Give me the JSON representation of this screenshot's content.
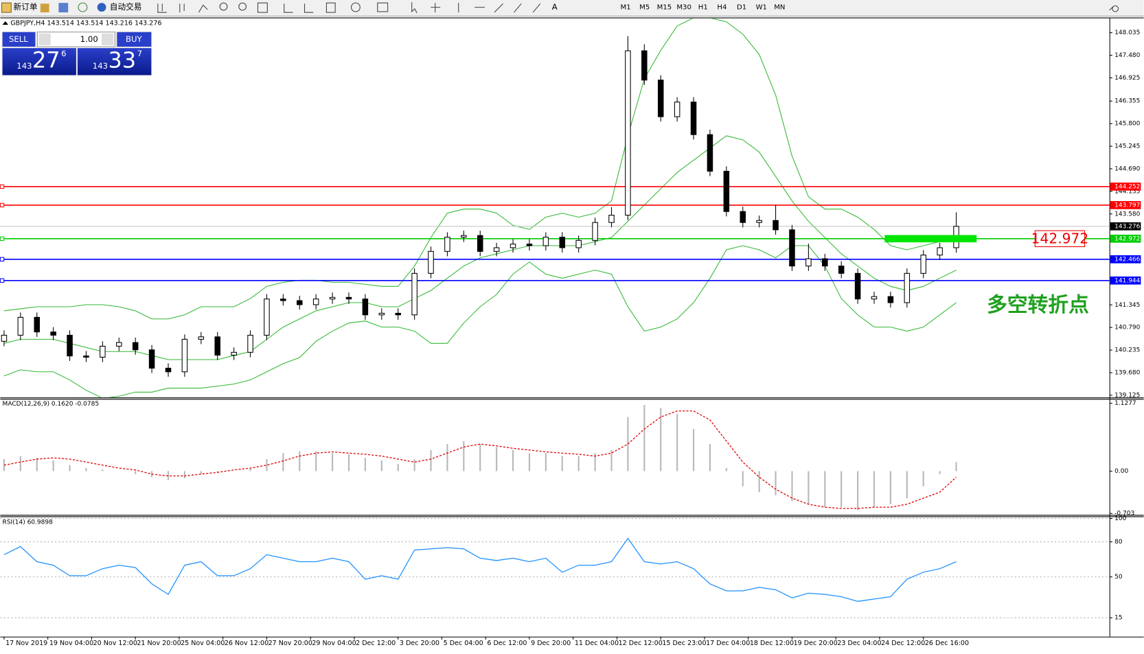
{
  "toolbar": {
    "new_order": "新订单",
    "auto_trading": "自动交易",
    "timeframes": [
      "M1",
      "M5",
      "M15",
      "M30",
      "H1",
      "H4",
      "D1",
      "W1",
      "MN"
    ]
  },
  "trade_panel": {
    "sell_label": "SELL",
    "buy_label": "BUY",
    "lot": "1.00",
    "sell": {
      "big": "143",
      "pips": "27",
      "fraction": "6"
    },
    "buy": {
      "big": "143",
      "pips": "33",
      "fraction": "7"
    }
  },
  "chart_data": {
    "type": "candlestick",
    "title": "GBPJPY,H4  143.514 143.514 143.216 143.276",
    "x": [
      0,
      3,
      6,
      9,
      12,
      15,
      18,
      21,
      24,
      27,
      30,
      33,
      36,
      39,
      42,
      45,
      48,
      51,
      54,
      57,
      60,
      63,
      66,
      69,
      72,
      75,
      78,
      81,
      84,
      87,
      90,
      93,
      96,
      99,
      102,
      105,
      108,
      111,
      114,
      117,
      120,
      123,
      126,
      129,
      132,
      135,
      138,
      141,
      144,
      147,
      150,
      153,
      156,
      159,
      162,
      165,
      168,
      171,
      174
    ],
    "xlim": [
      -0.7,
      202
    ],
    "xticks": [
      {
        "value": 0,
        "label": "17 Nov 2019"
      },
      {
        "value": 8,
        "label": "19 Nov 04:00"
      },
      {
        "value": 16,
        "label": "20 Nov 12:00"
      },
      {
        "value": 24,
        "label": "21 Nov 20:00"
      },
      {
        "value": 32,
        "label": "25 Nov 04:00"
      },
      {
        "value": 40,
        "label": "26 Nov 12:00"
      },
      {
        "value": 48,
        "label": "27 Nov 20:00"
      },
      {
        "value": 56,
        "label": "29 Nov 04:00"
      },
      {
        "value": 64,
        "label": "2 Dec 12:00"
      },
      {
        "value": 72,
        "label": "3 Dec 20:00"
      },
      {
        "value": 80,
        "label": "5 Dec 04:00"
      },
      {
        "value": 88,
        "label": "6 Dec 12:00"
      },
      {
        "value": 96,
        "label": "9 Dec 20:00"
      },
      {
        "value": 104,
        "label": "11 Dec 04:00"
      },
      {
        "value": 112,
        "label": "12 Dec 12:00"
      },
      {
        "value": 120,
        "label": "15 Dec 23:00"
      },
      {
        "value": 128,
        "label": "17 Dec 04:00"
      },
      {
        "value": 136,
        "label": "18 Dec 12:00"
      },
      {
        "value": 144,
        "label": "19 Dec 20:00"
      },
      {
        "value": 152,
        "label": "23 Dec 04:00"
      },
      {
        "value": 160,
        "label": "24 Dec 12:00"
      },
      {
        "value": 168,
        "label": "26 Dec 16:00"
      }
    ],
    "ylim": [
      139.07,
      148.39
    ],
    "yticks": [
      148.035,
      {
        "value": 147.48,
        "label": "147.480"
      },
      146.925,
      146.355,
      {
        "value": 145.8,
        "label": "145.800"
      },
      145.245,
      {
        "value": 144.69,
        "label": "144.690"
      },
      144.135,
      {
        "value": 143.58,
        "label": "143.580"
      },
      141.345,
      {
        "value": 140.79,
        "label": "140.790"
      },
      140.235,
      {
        "value": 139.68,
        "label": "139.680"
      },
      139.125
    ],
    "open": [
      140.45,
      140.6,
      141.04,
      140.68,
      140.6,
      140.09,
      140.06,
      140.33,
      140.42,
      140.24,
      139.79,
      139.7,
      140.5,
      140.56,
      140.11,
      140.18,
      140.6,
      141.49,
      141.45,
      141.35,
      141.49,
      141.53,
      141.49,
      141.1,
      141.14,
      141.1,
      142.12,
      142.66,
      143.01,
      143.05,
      142.66,
      142.75,
      142.84,
      142.8,
      143.01,
      142.75,
      142.93,
      143.37,
      143.55,
      147.59,
      146.87,
      145.97,
      146.33,
      145.53,
      144.63,
      143.64,
      143.37,
      143.42,
      143.19,
      142.3,
      142.48,
      142.3,
      142.12,
      141.49,
      141.55,
      141.4,
      142.12,
      142.57,
      142.75
    ],
    "high": [
      140.72,
      141.16,
      141.16,
      140.8,
      140.72,
      140.21,
      140.45,
      140.54,
      140.54,
      140.36,
      139.91,
      140.62,
      140.68,
      140.68,
      140.3,
      140.72,
      141.61,
      141.61,
      141.57,
      141.61,
      141.65,
      141.65,
      141.61,
      141.26,
      141.26,
      142.24,
      142.78,
      143.13,
      143.17,
      143.17,
      142.87,
      142.96,
      142.96,
      143.13,
      143.13,
      143.05,
      143.49,
      143.75,
      147.95,
      147.75,
      146.99,
      146.45,
      146.45,
      145.65,
      144.75,
      143.76,
      143.54,
      143.8,
      143.31,
      142.85,
      142.6,
      142.42,
      142.24,
      141.67,
      141.67,
      142.24,
      142.69,
      142.87,
      143.62
    ],
    "low": [
      140.33,
      140.48,
      140.56,
      140.48,
      139.97,
      139.94,
      139.94,
      140.21,
      140.12,
      139.67,
      139.58,
      139.58,
      140.38,
      139.99,
      139.99,
      140.06,
      140.48,
      141.33,
      141.23,
      141.23,
      141.37,
      141.37,
      140.98,
      140.98,
      140.98,
      140.98,
      142.0,
      142.54,
      142.89,
      142.54,
      142.54,
      142.63,
      142.68,
      142.68,
      142.63,
      142.63,
      142.81,
      143.25,
      143.43,
      146.75,
      145.85,
      145.85,
      145.41,
      144.51,
      143.52,
      143.25,
      143.25,
      143.07,
      142.18,
      142.18,
      142.18,
      142.0,
      141.37,
      141.37,
      141.28,
      141.28,
      142.0,
      142.45,
      142.63
    ],
    "close": [
      140.6,
      141.04,
      140.68,
      140.6,
      140.09,
      140.06,
      140.33,
      140.42,
      140.24,
      139.79,
      139.7,
      140.5,
      140.56,
      140.11,
      140.18,
      140.6,
      141.49,
      141.45,
      141.35,
      141.49,
      141.53,
      141.49,
      141.1,
      141.14,
      141.1,
      142.12,
      142.66,
      143.01,
      143.05,
      142.66,
      142.75,
      142.84,
      142.8,
      143.01,
      142.75,
      142.93,
      143.37,
      143.55,
      147.59,
      146.87,
      145.97,
      146.33,
      145.53,
      144.63,
      143.64,
      143.37,
      143.42,
      143.19,
      142.3,
      142.48,
      142.3,
      142.12,
      141.49,
      141.55,
      141.4,
      142.12,
      142.57,
      142.75,
      143.276
    ],
    "overlays": [
      {
        "color": "#33b833",
        "values": [
          141.2,
          141.25,
          141.3,
          141.3,
          141.3,
          141.35,
          141.35,
          141.3,
          141.2,
          141.0,
          141.0,
          141.1,
          141.3,
          141.3,
          141.3,
          141.5,
          141.8,
          141.9,
          141.95,
          141.95,
          141.9,
          141.9,
          141.85,
          141.8,
          141.8,
          142.3,
          143.0,
          143.6,
          143.7,
          143.7,
          143.6,
          143.3,
          143.2,
          143.5,
          143.6,
          143.5,
          143.6,
          143.9,
          145.5,
          146.9,
          147.6,
          148.2,
          148.4,
          148.4,
          148.3,
          148.0,
          147.5,
          146.5,
          145.0,
          144.0,
          143.7,
          143.7,
          143.5,
          143.2,
          142.8,
          142.7,
          142.8,
          142.9,
          143.0
        ]
      },
      {
        "color": "#33b833",
        "values": [
          140.4,
          140.5,
          140.5,
          140.5,
          140.4,
          140.3,
          140.2,
          140.2,
          140.2,
          140.1,
          140.0,
          140.0,
          140.0,
          140.0,
          140.1,
          140.2,
          140.5,
          140.8,
          141.0,
          141.2,
          141.3,
          141.4,
          141.4,
          141.3,
          141.3,
          141.5,
          141.7,
          142.0,
          142.3,
          142.5,
          142.6,
          142.7,
          142.8,
          142.8,
          142.8,
          142.8,
          142.9,
          143.0,
          143.4,
          143.8,
          144.2,
          144.6,
          144.9,
          145.2,
          145.5,
          145.4,
          145.1,
          144.5,
          143.9,
          143.4,
          143.0,
          142.6,
          142.3,
          142.0,
          141.8,
          141.7,
          141.8,
          142.0,
          142.2
        ]
      },
      {
        "color": "#33b833",
        "values": [
          139.6,
          139.75,
          139.7,
          139.7,
          139.5,
          139.25,
          139.05,
          139.1,
          139.2,
          139.2,
          139.3,
          139.3,
          139.3,
          139.35,
          139.4,
          139.5,
          139.7,
          139.9,
          140.05,
          140.45,
          140.7,
          140.9,
          140.95,
          140.8,
          140.8,
          140.7,
          140.4,
          140.4,
          140.9,
          141.3,
          141.6,
          142.1,
          142.4,
          142.1,
          142.0,
          142.1,
          142.2,
          142.1,
          141.3,
          140.7,
          140.8,
          141.0,
          141.4,
          142.0,
          142.7,
          142.8,
          142.7,
          142.5,
          142.8,
          142.8,
          142.3,
          141.5,
          141.1,
          140.8,
          140.8,
          140.7,
          140.8,
          141.1,
          141.4
        ]
      }
    ],
    "levels": [
      {
        "value": 144.252,
        "color": "#ff0000"
      },
      {
        "value": 143.797,
        "color": "#ff0000"
      },
      {
        "value": 142.972,
        "color": "#00cc00"
      },
      {
        "value": 142.466,
        "color": "#0000ff"
      },
      {
        "value": 141.944,
        "color": "#0000ff"
      }
    ],
    "zone_color": "#00e600",
    "annotation": {
      "text": "多空转折点",
      "color": "#1fa01f"
    },
    "panels": [
      {
        "label": "MACD(12,26,9) 0.1620 -0.0785",
        "ylim": [
          -0.727,
          1.188
        ],
        "yticks": [
          1.1277,
          {
            "value": 0,
            "label": "0.00"
          },
          -0.703
        ],
        "histogram": {
          "color": "#b8b8b8",
          "values": [
            0.2,
            0.25,
            0.22,
            0.18,
            0.1,
            0.05,
            0.03,
            0.0,
            -0.05,
            -0.1,
            -0.15,
            -0.12,
            -0.05,
            -0.02,
            0.0,
            0.05,
            0.2,
            0.3,
            0.33,
            0.33,
            0.3,
            0.28,
            0.22,
            0.18,
            0.12,
            0.2,
            0.35,
            0.45,
            0.5,
            0.45,
            0.4,
            0.35,
            0.3,
            0.3,
            0.25,
            0.25,
            0.3,
            0.35,
            0.9,
            1.1,
            1.05,
            0.95,
            0.7,
            0.45,
            0.05,
            -0.25,
            -0.35,
            -0.4,
            -0.5,
            -0.55,
            -0.6,
            -0.6,
            -0.65,
            -0.6,
            -0.55,
            -0.45,
            -0.25,
            -0.05,
            0.15
          ]
        },
        "lines": [
          {
            "color": "#e00000",
            "dashed": true,
            "values": [
              0.1,
              0.15,
              0.2,
              0.22,
              0.2,
              0.15,
              0.1,
              0.05,
              0.02,
              -0.05,
              -0.08,
              -0.08,
              -0.05,
              -0.02,
              0.02,
              0.05,
              0.1,
              0.17,
              0.25,
              0.3,
              0.32,
              0.3,
              0.28,
              0.25,
              0.2,
              0.15,
              0.2,
              0.3,
              0.4,
              0.45,
              0.42,
              0.38,
              0.35,
              0.32,
              0.3,
              0.28,
              0.25,
              0.3,
              0.45,
              0.7,
              0.9,
              1.0,
              1.0,
              0.85,
              0.5,
              0.15,
              -0.1,
              -0.3,
              -0.45,
              -0.55,
              -0.6,
              -0.62,
              -0.62,
              -0.6,
              -0.6,
              -0.55,
              -0.45,
              -0.35,
              -0.1
            ]
          }
        ],
        "grid": false
      },
      {
        "label": "RSI(14) 60.9898",
        "ylim": [
          -1.2,
          100.6
        ],
        "yticks": [
          100,
          80,
          50,
          15
        ],
        "lines": [
          {
            "color": "#1e90ff",
            "dashed": false,
            "values": [
              69,
              76,
              63,
              60,
              51,
              51,
              57,
              60,
              58,
              44,
              35,
              60,
              63,
              51,
              51,
              57,
              69,
              66,
              63,
              63,
              66,
              63,
              48,
              51,
              48,
              73,
              74,
              75,
              74,
              66,
              64,
              66,
              63,
              66,
              54,
              60,
              60,
              63,
              83,
              63,
              61,
              63,
              57,
              44,
              38,
              38,
              41,
              39,
              32,
              36,
              35,
              33,
              29,
              31,
              33,
              48,
              54,
              57,
              63
            ]
          }
        ],
        "grid": true
      }
    ]
  }
}
